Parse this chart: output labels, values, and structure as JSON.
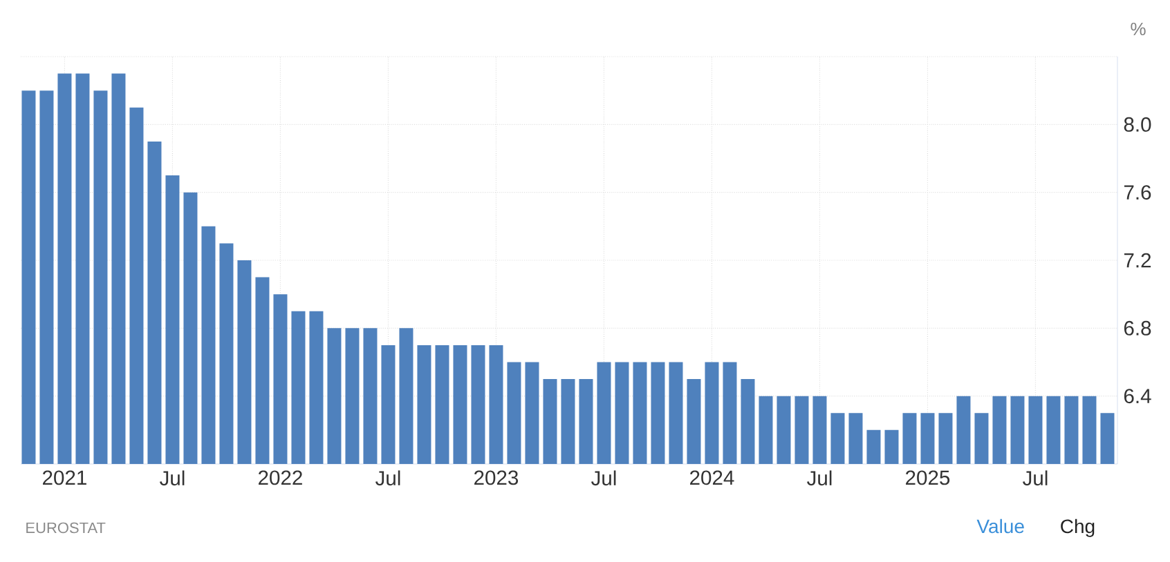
{
  "chart_data": {
    "type": "bar",
    "ylabel": "%",
    "categories": [
      null,
      null,
      "2021",
      null,
      null,
      null,
      null,
      null,
      "Jul",
      null,
      null,
      null,
      null,
      null,
      "2022",
      null,
      null,
      null,
      null,
      null,
      "Jul",
      null,
      null,
      null,
      null,
      null,
      "2023",
      null,
      null,
      null,
      null,
      null,
      "Jul",
      null,
      null,
      null,
      null,
      null,
      "2024",
      null,
      null,
      null,
      null,
      null,
      "Jul",
      null,
      null,
      null,
      null,
      null,
      "2025",
      null,
      null,
      null,
      null,
      null,
      "Jul",
      null,
      null,
      null,
      null
    ],
    "values": [
      8.2,
      8.2,
      8.3,
      8.3,
      8.2,
      8.3,
      8.1,
      7.9,
      7.7,
      7.6,
      7.4,
      7.3,
      7.2,
      7.1,
      7.0,
      6.9,
      6.9,
      6.8,
      6.8,
      6.8,
      6.7,
      6.8,
      6.7,
      6.7,
      6.7,
      6.7,
      6.7,
      6.6,
      6.6,
      6.5,
      6.5,
      6.5,
      6.6,
      6.6,
      6.6,
      6.6,
      6.6,
      6.5,
      6.6,
      6.6,
      6.5,
      6.4,
      6.4,
      6.4,
      6.4,
      6.3,
      6.3,
      6.2,
      6.2,
      6.3,
      6.3,
      6.3,
      6.4,
      6.3,
      6.4,
      6.4,
      6.4,
      6.4,
      6.4,
      6.4,
      6.3
    ],
    "color": "#4f81bd",
    "ylim": [
      6.0,
      8.4
    ],
    "yticks": [
      {
        "value": 6.4,
        "label": "6.4"
      },
      {
        "value": 6.8,
        "label": "6.8"
      },
      {
        "value": 7.2,
        "label": "7.2"
      },
      {
        "value": 7.6,
        "label": "7.6"
      },
      {
        "value": 8.0,
        "label": "8.0"
      },
      {
        "value": 8.4,
        "label": null
      }
    ],
    "grid": true,
    "annotations": [
      "EUROSTAT",
      "Value",
      "Chg"
    ]
  }
}
